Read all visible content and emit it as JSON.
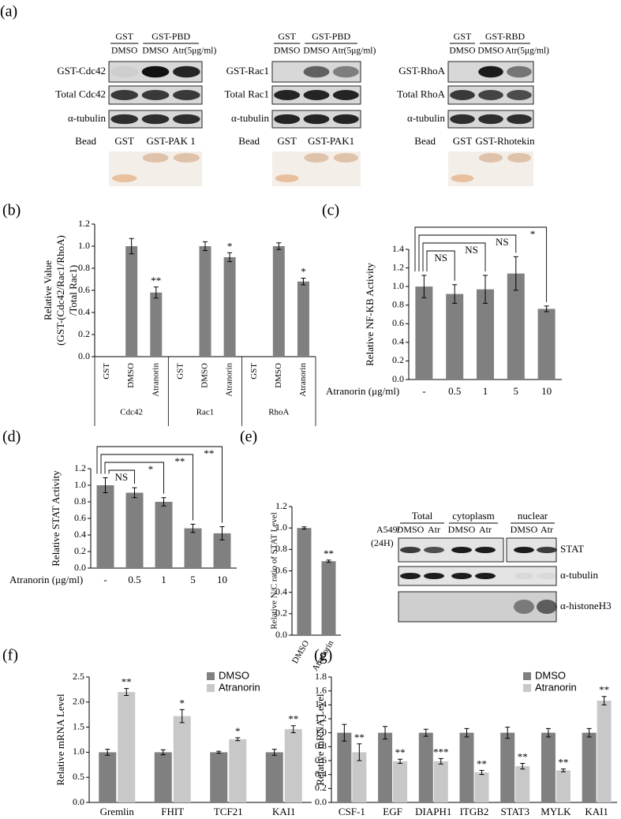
{
  "panel_labels": [
    "(a)",
    "(b)",
    "(c)",
    "(d)",
    "(e)",
    "(f)",
    "(g)"
  ],
  "pulldown_blots": [
    {
      "bait_control": "GST",
      "bait": "GST-PBD",
      "lanes": [
        "DMSO",
        "DMSO",
        "Atr(5μg/ml)"
      ],
      "rows": [
        "GST-Cdc42",
        "Total Cdc42",
        "α-tubulin"
      ],
      "bead_label": "Bead",
      "beads": [
        "GST",
        "GST-PAK 1"
      ]
    },
    {
      "bait_control": "GST",
      "bait": "GST-PBD",
      "lanes": [
        "DMSO",
        "DMSO",
        "Atr(5μg/ml)"
      ],
      "rows": [
        "GST-Rac1",
        "Total Rac1",
        "α-tubulin"
      ],
      "bead_label": "Bead",
      "beads": [
        "GST",
        "GST-PAK1"
      ]
    },
    {
      "bait_control": "GST",
      "bait": "GST-RBD",
      "lanes": [
        "DMSO",
        "DMSO",
        "Atr(5μg/ml)"
      ],
      "rows": [
        "GST-RhoA",
        "Total RhoA",
        "α-tubulin"
      ],
      "bead_label": "Bead",
      "beads": [
        "GST",
        "GST-Rhotekin"
      ]
    }
  ],
  "fractionation_blot": {
    "groups": [
      "Total",
      "cytoplasm",
      "nuclear"
    ],
    "cell_line": "A549/",
    "time": "(24H)",
    "lanes": [
      "DMSO",
      "Atr",
      "DMSO",
      "Atr",
      "DMSO",
      "Atr"
    ],
    "rows": [
      "STAT",
      "α-tubulin",
      "α-histoneH3"
    ]
  },
  "chart_data": [
    {
      "type": "bar",
      "y_label": [
        "Relative Value",
        "(GST-(Cdc42/Rac1/RhoA)",
        "/Total Rac1)"
      ],
      "categories": [
        "GST",
        "DMSO",
        "Atranorin",
        "GST",
        "DMSO",
        "Atranorin",
        "GST",
        "DMSO",
        "Atranorin"
      ],
      "groups": [
        "Cdc42",
        "Rac1",
        "RhoA"
      ],
      "values": [
        0,
        1.0,
        0.58,
        0,
        1.0,
        0.9,
        0,
        1.0,
        0.68
      ],
      "errors": [
        null,
        0.07,
        0.05,
        null,
        0.04,
        0.04,
        null,
        0.03,
        0.03
      ],
      "annotations": [
        null,
        null,
        "**",
        null,
        null,
        "*",
        null,
        null,
        "*"
      ],
      "color": "#808080",
      "ylim": [
        0,
        1.2
      ],
      "yticks": [
        {
          "value": 0,
          "label": "0.0"
        },
        0.2,
        0.4,
        0.6,
        0.8,
        {
          "value": 1,
          "label": "1.0"
        },
        1.2
      ]
    },
    {
      "type": "bar",
      "y_label": "Relative  NF-KB  Activity",
      "x_label": "Atranorin (μg/ml)",
      "categories": [
        "-",
        "0.5",
        "1",
        "5",
        "10"
      ],
      "values": [
        1.0,
        0.92,
        0.97,
        1.14,
        0.76
      ],
      "errors": [
        0.12,
        0.1,
        0.15,
        0.18,
        0.03
      ],
      "comparisons": [
        {
          "between": [
            "-",
            "0.5"
          ],
          "label": "NS"
        },
        {
          "between": [
            "-",
            "1"
          ],
          "label": "NS"
        },
        {
          "between": [
            "-",
            "5"
          ],
          "label": "NS"
        },
        {
          "between": [
            "-",
            "10"
          ],
          "label": "*"
        }
      ],
      "color": "#808080",
      "ylim": [
        0,
        1.4
      ],
      "yticks": [
        {
          "value": 0,
          "label": "0.0"
        },
        0.2,
        0.4,
        0.6,
        0.8,
        {
          "value": 1,
          "label": "1.0"
        },
        1.2,
        1.4
      ]
    },
    {
      "type": "bar",
      "y_label": "Relative  STAT  Activity",
      "x_label": "Atranorin (μg/ml)",
      "categories": [
        "-",
        "0.5",
        "1",
        "5",
        "10"
      ],
      "values": [
        1.0,
        0.91,
        0.8,
        0.48,
        0.42
      ],
      "errors": [
        0.09,
        0.06,
        0.05,
        0.05,
        0.08
      ],
      "comparisons": [
        {
          "between": [
            "-",
            "0.5"
          ],
          "label": "NS"
        },
        {
          "between": [
            "-",
            "1"
          ],
          "label": "*"
        },
        {
          "between": [
            "-",
            "5"
          ],
          "label": "**"
        },
        {
          "between": [
            "-",
            "10"
          ],
          "label": "**"
        }
      ],
      "color": "#808080",
      "ylim": [
        0,
        1.2
      ],
      "yticks": [
        {
          "value": 0,
          "label": "0.0"
        },
        0.2,
        0.4,
        0.6,
        0.8,
        {
          "value": 1,
          "label": "1.0"
        },
        1.2
      ]
    },
    {
      "type": "bar",
      "y_label": "Relative N/C ratio of STAT Level",
      "categories": [
        "DMSO",
        "Atranorin"
      ],
      "values": [
        1.0,
        0.69
      ],
      "errors": [
        0.01,
        0.01
      ],
      "annotations": [
        null,
        "**"
      ],
      "color": "#808080",
      "ylim": [
        0,
        1.2
      ],
      "yticks": [
        {
          "value": 0,
          "label": "0.0"
        },
        0.2,
        0.4,
        0.6,
        0.8,
        {
          "value": 1,
          "label": "1.0"
        },
        1.2
      ]
    },
    {
      "type": "grouped_bar",
      "y_label": "Relative mRNA Level",
      "categories": [
        "Gremlin",
        "FHIT",
        "TCF21",
        "KAI1"
      ],
      "series": [
        {
          "name": "DMSO",
          "color": "#808080",
          "values": [
            1.0,
            1.0,
            1.0,
            1.0
          ],
          "errors": [
            0.06,
            0.05,
            0.02,
            0.06
          ]
        },
        {
          "name": "Atranorin",
          "color": "#c8c8c8",
          "values": [
            2.2,
            1.72,
            1.26,
            1.46
          ],
          "errors": [
            0.07,
            0.13,
            0.03,
            0.07
          ],
          "annotations": [
            "**",
            "*",
            "*",
            "**"
          ]
        }
      ],
      "ylim": [
        0,
        2.5
      ],
      "yticks": [
        {
          "value": 0,
          "label": "0.0"
        },
        0.5,
        {
          "value": 1,
          "label": "1.0"
        },
        1.5,
        {
          "value": 2,
          "label": "2.0"
        },
        2.5
      ]
    },
    {
      "type": "grouped_bar",
      "y_label": "Relative mRNA Level",
      "categories": [
        "CSF-1",
        "EGF",
        "DIAPH1",
        "ITGB2",
        "STAT3",
        "MYLK",
        "KAI1"
      ],
      "series": [
        {
          "name": "DMSO",
          "color": "#808080",
          "values": [
            1.0,
            1.0,
            1.0,
            1.0,
            1.0,
            1.0,
            1.0
          ],
          "errors": [
            0.12,
            0.09,
            0.05,
            0.06,
            0.08,
            0.06,
            0.06
          ]
        },
        {
          "name": "Atranorin",
          "color": "#c8c8c8",
          "values": [
            0.72,
            0.59,
            0.59,
            0.43,
            0.52,
            0.46,
            1.46
          ],
          "errors": [
            0.12,
            0.03,
            0.04,
            0.03,
            0.04,
            0.02,
            0.06
          ],
          "annotations": [
            "**",
            "**",
            "***",
            "**",
            "**",
            "**",
            "**"
          ]
        }
      ],
      "ylim": [
        0,
        1.8
      ],
      "yticks": [
        {
          "value": 0,
          "label": "0.0"
        },
        0.2,
        0.4,
        0.6,
        0.8,
        {
          "value": 1,
          "label": "1.0"
        },
        1.2,
        1.4,
        1.6,
        1.8
      ]
    }
  ]
}
